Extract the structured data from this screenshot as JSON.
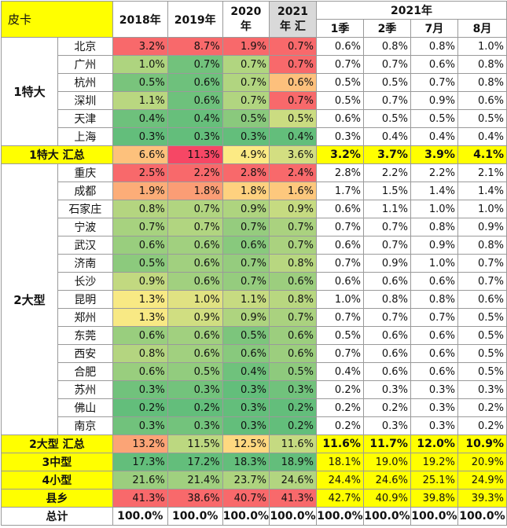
{
  "chart_data": {
    "type": "table",
    "corner": "皮卡",
    "header_year": "2021年",
    "columns": [
      "2018年",
      "2019年",
      "2020年",
      "2021年 汇",
      "1季",
      "2季",
      "7月",
      "8月"
    ],
    "header_cols": {
      "y2018": "2018年",
      "y2019": "2019年",
      "y2020a": "2020",
      "y2020b": "年",
      "y2021a": "2021",
      "y2021b": "年 汇",
      "q1": "1季",
      "q2": "2季",
      "m7": "7月",
      "m8": "8月"
    },
    "groups": [
      {
        "name": "1特大",
        "cities": [
          {
            "name": "北京",
            "values": [
              "3.2%",
              "8.7%",
              "1.9%",
              "0.7%",
              "0.6%",
              "0.8%",
              "0.8%",
              "1.0%"
            ]
          },
          {
            "name": "广州",
            "values": [
              "1.0%",
              "0.7%",
              "0.7%",
              "0.7%",
              "0.7%",
              "0.7%",
              "0.6%",
              "0.8%"
            ]
          },
          {
            "name": "杭州",
            "values": [
              "0.5%",
              "0.6%",
              "0.7%",
              "0.6%",
              "0.5%",
              "0.5%",
              "0.7%",
              "0.8%"
            ]
          },
          {
            "name": "深圳",
            "values": [
              "1.1%",
              "0.6%",
              "0.7%",
              "0.7%",
              "0.5%",
              "0.7%",
              "0.9%",
              "0.6%"
            ]
          },
          {
            "name": "天津",
            "values": [
              "0.4%",
              "0.4%",
              "0.5%",
              "0.5%",
              "0.6%",
              "0.5%",
              "0.5%",
              "0.5%"
            ]
          },
          {
            "name": "上海",
            "values": [
              "0.3%",
              "0.3%",
              "0.3%",
              "0.4%",
              "0.3%",
              "0.4%",
              "0.4%",
              "0.4%"
            ]
          }
        ],
        "total_label": "1特大 汇总",
        "total_values": [
          "6.6%",
          "11.3%",
          "4.9%",
          "3.6%",
          "3.2%",
          "3.7%",
          "3.9%",
          "4.1%"
        ]
      },
      {
        "name": "2大型",
        "cities": [
          {
            "name": "重庆",
            "values": [
              "2.5%",
              "2.2%",
              "2.8%",
              "2.4%",
              "2.8%",
              "2.2%",
              "2.2%",
              "2.1%"
            ]
          },
          {
            "name": "成都",
            "values": [
              "1.9%",
              "1.8%",
              "1.8%",
              "1.6%",
              "1.7%",
              "1.5%",
              "1.4%",
              "1.4%"
            ]
          },
          {
            "name": "石家庄",
            "values": [
              "0.8%",
              "0.7%",
              "0.9%",
              "0.9%",
              "0.6%",
              "1.1%",
              "1.0%",
              "1.0%"
            ]
          },
          {
            "name": "宁波",
            "values": [
              "0.7%",
              "0.7%",
              "0.7%",
              "0.7%",
              "0.7%",
              "0.7%",
              "0.8%",
              "0.9%"
            ]
          },
          {
            "name": "武汉",
            "values": [
              "0.6%",
              "0.6%",
              "0.6%",
              "0.7%",
              "0.6%",
              "0.7%",
              "0.9%",
              "0.8%"
            ]
          },
          {
            "name": "济南",
            "values": [
              "0.5%",
              "0.6%",
              "0.7%",
              "0.8%",
              "0.7%",
              "0.9%",
              "1.0%",
              "0.7%"
            ]
          },
          {
            "name": "长沙",
            "values": [
              "0.9%",
              "0.6%",
              "0.7%",
              "0.6%",
              "0.6%",
              "0.6%",
              "0.6%",
              "0.7%"
            ]
          },
          {
            "name": "昆明",
            "values": [
              "1.3%",
              "1.0%",
              "1.1%",
              "0.8%",
              "1.0%",
              "0.8%",
              "0.8%",
              "0.6%"
            ]
          },
          {
            "name": "郑州",
            "values": [
              "1.3%",
              "0.9%",
              "0.9%",
              "0.7%",
              "0.7%",
              "0.7%",
              "0.7%",
              "0.5%"
            ]
          },
          {
            "name": "东莞",
            "values": [
              "0.6%",
              "0.6%",
              "0.5%",
              "0.6%",
              "0.5%",
              "0.6%",
              "0.6%",
              "0.5%"
            ]
          },
          {
            "name": "西安",
            "values": [
              "0.8%",
              "0.6%",
              "0.6%",
              "0.6%",
              "0.7%",
              "0.6%",
              "0.6%",
              "0.5%"
            ]
          },
          {
            "name": "合肥",
            "values": [
              "0.6%",
              "0.5%",
              "0.4%",
              "0.5%",
              "0.4%",
              "0.6%",
              "0.6%",
              "0.5%"
            ]
          },
          {
            "name": "苏州",
            "values": [
              "0.3%",
              "0.3%",
              "0.3%",
              "0.3%",
              "0.2%",
              "0.3%",
              "0.3%",
              "0.3%"
            ]
          },
          {
            "name": "佛山",
            "values": [
              "0.2%",
              "0.2%",
              "0.3%",
              "0.2%",
              "0.2%",
              "0.2%",
              "0.3%",
              "0.2%"
            ]
          },
          {
            "name": "南京",
            "values": [
              "0.3%",
              "0.3%",
              "0.3%",
              "0.2%",
              "0.2%",
              "0.3%",
              "0.3%",
              "0.2%"
            ]
          }
        ],
        "total_label": "2大型 汇总",
        "total_values": [
          "13.2%",
          "11.5%",
          "12.5%",
          "11.6%",
          "11.6%",
          "11.7%",
          "12.0%",
          "10.9%"
        ]
      }
    ],
    "tiers": [
      {
        "label": "3中型",
        "values": [
          "17.3%",
          "17.2%",
          "18.3%",
          "18.9%",
          "18.1%",
          "19.0%",
          "19.2%",
          "20.9%"
        ]
      },
      {
        "label": "4小型",
        "values": [
          "21.6%",
          "21.4%",
          "23.7%",
          "24.6%",
          "24.4%",
          "24.6%",
          "25.1%",
          "24.9%"
        ]
      },
      {
        "label": "县乡",
        "values": [
          "41.3%",
          "38.6%",
          "40.7%",
          "41.3%",
          "42.7%",
          "40.9%",
          "39.8%",
          "39.3%"
        ]
      }
    ],
    "grand_total": {
      "label": "总计",
      "values": [
        "100.0%",
        "100.0%",
        "100.0%",
        "100.0%",
        "100.0%",
        "100.0%",
        "100.0%",
        "100.0%"
      ]
    },
    "colors": {
      "highlight": "#ffff00",
      "header_gray": "#d9d9d9",
      "scale_low": "#63be7b",
      "scale_mid": "#ffeb84",
      "scale_high": "#f8696b"
    }
  }
}
